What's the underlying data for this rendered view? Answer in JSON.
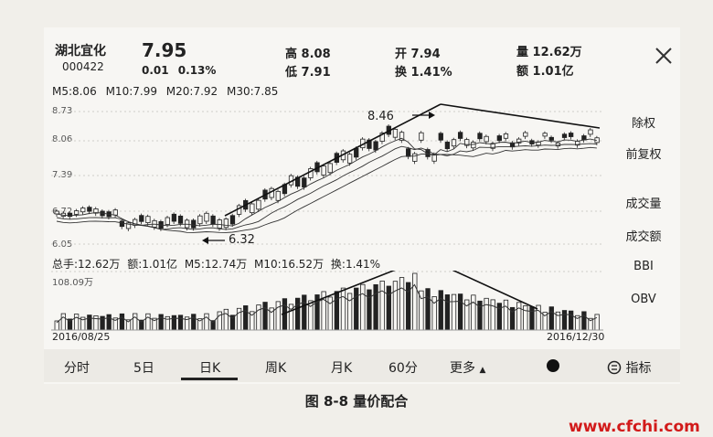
{
  "header": {
    "name": "湖北宜化",
    "code": "000422",
    "price": "7.95",
    "change": "0.01",
    "change_pct": "0.13%",
    "high_label": "高",
    "high": "8.08",
    "low_label": "低",
    "low": "7.91",
    "open_label": "开",
    "open": "7.94",
    "turnover_label": "换",
    "turnover": "1.41%",
    "volume_label": "量",
    "volume": "12.62万",
    "amount_label": "额",
    "amount": "1.01亿"
  },
  "ma_row": {
    "m5": "M5:8.06",
    "m10": "M10:7.99",
    "m20": "M20:7.92",
    "m30": "M30:7.85"
  },
  "price_axis": {
    "labels": [
      "8.73",
      "8.06",
      "7.39",
      "6.72",
      "6.05"
    ]
  },
  "annotations": {
    "high_mark": "8.46",
    "low_mark": "6.32"
  },
  "volume_info": {
    "total": "总手:12.62万",
    "amount": "额:1.01亿",
    "m5": "M5:12.74万",
    "m10": "M10:16.52万",
    "turnover": "换:1.41%",
    "axis_max": "108.09万"
  },
  "dates": {
    "start": "2016/08/25",
    "end": "2016/12/30"
  },
  "sidebar": {
    "items": [
      "除权",
      "前复权",
      "成交量",
      "成交额",
      "BBI",
      "OBV"
    ]
  },
  "tabs": {
    "items": [
      "分时",
      "5日",
      "日K",
      "周K",
      "月K",
      "60分",
      "更多"
    ],
    "active": "日K",
    "indicator_label": "指标"
  },
  "caption": "图 8-8    量价配合",
  "watermark": "www.cfchi.com",
  "colors": {
    "up": "#222222",
    "down": "#222222",
    "accent_red": "#d21a1a"
  }
}
